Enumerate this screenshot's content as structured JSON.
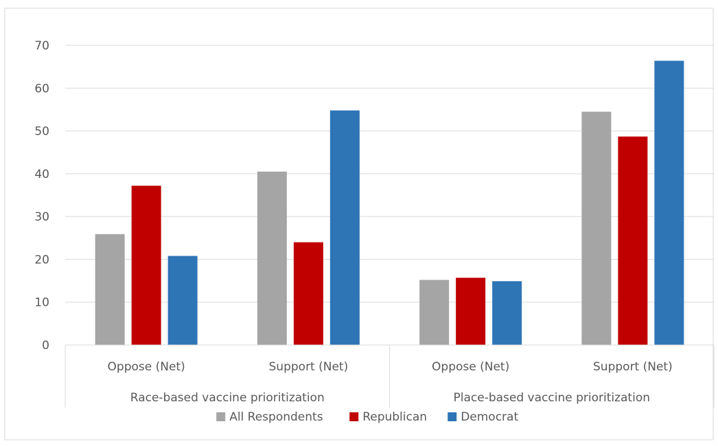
{
  "chart_data": {
    "type": "bar",
    "title": "",
    "xlabel": "",
    "ylabel": "",
    "ylim": [
      0,
      70
    ],
    "yticks": [
      0,
      10,
      20,
      30,
      40,
      50,
      60,
      70
    ],
    "grid": true,
    "legend_position": "bottom",
    "groups": [
      {
        "label": "Race-based vaccine prioritization",
        "categories": [
          "Oppose (Net)",
          "Support (Net)"
        ]
      },
      {
        "label": "Place-based vaccine prioritization",
        "categories": [
          "Oppose (Net)",
          "Support (Net)"
        ]
      }
    ],
    "series": [
      {
        "name": "All Respondents",
        "color": "#a5a5a5",
        "values": [
          25.9,
          40.5,
          15.2,
          54.5
        ]
      },
      {
        "name": "Republican",
        "color": "#c00000",
        "values": [
          37.2,
          24.0,
          15.7,
          48.7
        ]
      },
      {
        "name": "Democrat",
        "color": "#2e75b6",
        "values": [
          20.8,
          54.8,
          14.9,
          66.4
        ]
      }
    ]
  }
}
